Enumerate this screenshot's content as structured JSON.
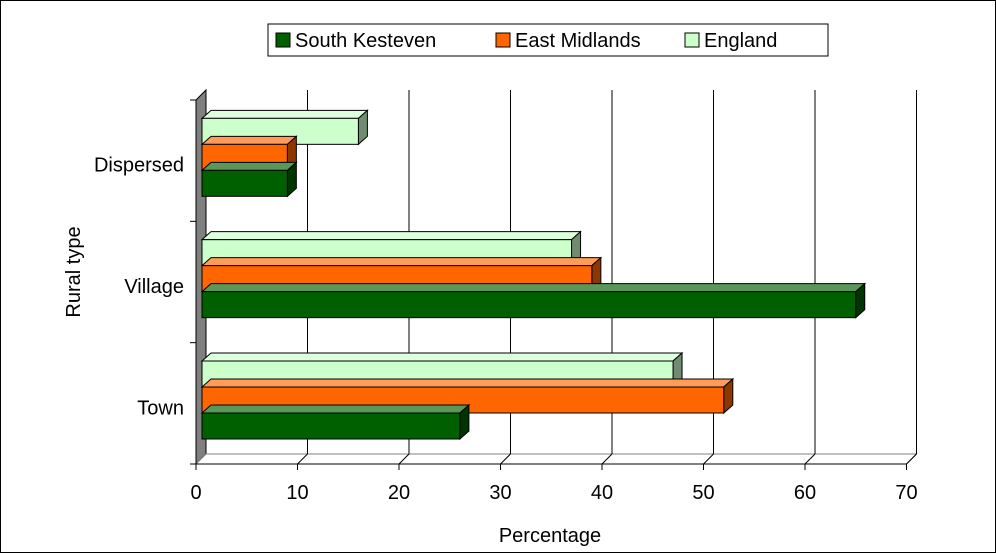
{
  "chart_data": {
    "type": "bar",
    "orientation": "horizontal",
    "categories": [
      "Town",
      "Village",
      "Dispersed"
    ],
    "series": [
      {
        "name": "South Kesteven",
        "values": [
          26,
          65,
          9
        ],
        "color": "#006000"
      },
      {
        "name": "East Midlands",
        "values": [
          52,
          39,
          9
        ],
        "color": "#ff6600"
      },
      {
        "name": "England",
        "values": [
          47,
          37,
          16
        ],
        "color": "#ccffcc"
      }
    ],
    "xlabel": "Percentage",
    "ylabel": "Rural type",
    "xlim": [
      0,
      70
    ],
    "xticks": [
      "0",
      "10",
      "20",
      "30",
      "40",
      "50",
      "60",
      "70"
    ],
    "grid": true,
    "legend_position": "top",
    "three_d": true
  }
}
